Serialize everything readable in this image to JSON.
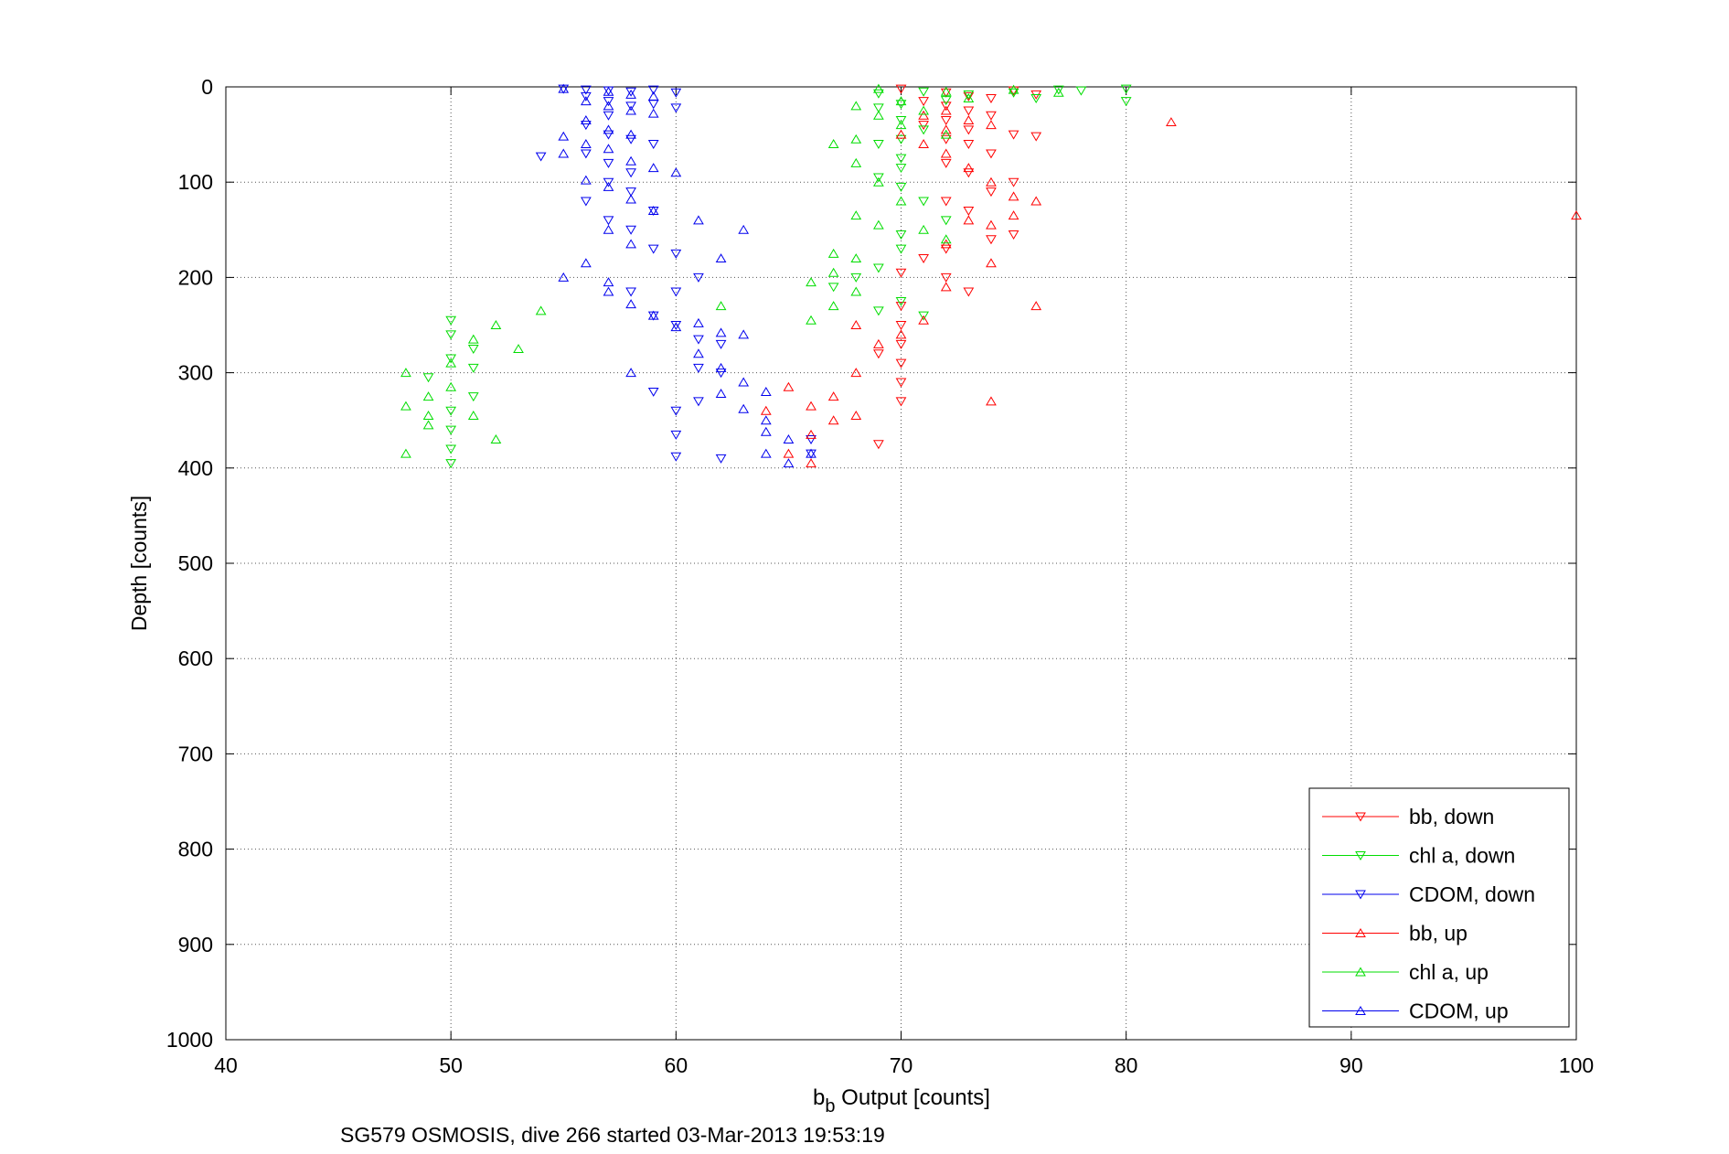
{
  "chart_data": {
    "type": "scatter",
    "xlabel_main": "b",
    "xlabel_sub": "b",
    "xlabel_rest": " Output [counts]",
    "ylabel": "Depth [counts]",
    "footer": "SG579 OSMOSIS, dive 266 started 03-Mar-2013 19:53:19",
    "xlim": [
      40,
      100
    ],
    "ylim": [
      0,
      1000
    ],
    "y_reversed": true,
    "grid": true,
    "legend_position": "bottom-right",
    "x_ticks": [
      "40",
      "50",
      "60",
      "70",
      "80",
      "90",
      "100"
    ],
    "y_ticks": [
      "0",
      "100",
      "200",
      "300",
      "400",
      "500",
      "600",
      "700",
      "800",
      "900",
      "1000"
    ],
    "series": [
      {
        "name": "bb, down",
        "color": "#ff0000",
        "marker": "triangle-down",
        "points": [
          [
            70,
            2
          ],
          [
            72,
            6
          ],
          [
            73,
            10
          ],
          [
            75,
            4
          ],
          [
            74,
            12
          ],
          [
            76,
            8
          ],
          [
            71,
            15
          ],
          [
            72,
            20
          ],
          [
            73,
            25
          ],
          [
            74,
            30
          ],
          [
            72,
            35
          ],
          [
            71,
            40
          ],
          [
            73,
            45
          ],
          [
            75,
            50
          ],
          [
            76,
            52
          ],
          [
            72,
            55
          ],
          [
            73,
            60
          ],
          [
            74,
            70
          ],
          [
            72,
            80
          ],
          [
            73,
            90
          ],
          [
            75,
            100
          ],
          [
            74,
            110
          ],
          [
            72,
            120
          ],
          [
            73,
            130
          ],
          [
            75,
            155
          ],
          [
            74,
            160
          ],
          [
            72,
            170
          ],
          [
            71,
            180
          ],
          [
            70,
            195
          ],
          [
            72,
            200
          ],
          [
            73,
            215
          ],
          [
            70,
            230
          ],
          [
            70,
            250
          ],
          [
            70,
            270
          ],
          [
            69,
            280
          ],
          [
            70,
            290
          ],
          [
            70,
            310
          ],
          [
            70,
            330
          ],
          [
            69,
            375
          ]
        ]
      },
      {
        "name": "chl a, down",
        "color": "#00dd00",
        "marker": "triangle-down",
        "points": [
          [
            80,
            2
          ],
          [
            78,
            4
          ],
          [
            77,
            3
          ],
          [
            75,
            6
          ],
          [
            73,
            8
          ],
          [
            71,
            5
          ],
          [
            69,
            7
          ],
          [
            80,
            15
          ],
          [
            76,
            12
          ],
          [
            72,
            14
          ],
          [
            70,
            18
          ],
          [
            69,
            22
          ],
          [
            70,
            35
          ],
          [
            71,
            45
          ],
          [
            70,
            55
          ],
          [
            69,
            60
          ],
          [
            70,
            75
          ],
          [
            70,
            85
          ],
          [
            69,
            95
          ],
          [
            70,
            105
          ],
          [
            71,
            120
          ],
          [
            72,
            140
          ],
          [
            70,
            155
          ],
          [
            70,
            170
          ],
          [
            69,
            190
          ],
          [
            68,
            200
          ],
          [
            67,
            210
          ],
          [
            70,
            225
          ],
          [
            69,
            235
          ],
          [
            71,
            240
          ],
          [
            50,
            245
          ],
          [
            51,
            275
          ],
          [
            49,
            305
          ],
          [
            50,
            260
          ],
          [
            50,
            285
          ],
          [
            51,
            295
          ],
          [
            51,
            325
          ],
          [
            50,
            340
          ],
          [
            50,
            360
          ],
          [
            50,
            380
          ],
          [
            50,
            395
          ]
        ]
      },
      {
        "name": "CDOM, down",
        "color": "#0000ee",
        "marker": "triangle-down",
        "points": [
          [
            55,
            2
          ],
          [
            56,
            3
          ],
          [
            57,
            4
          ],
          [
            58,
            5
          ],
          [
            59,
            3
          ],
          [
            60,
            6
          ],
          [
            56,
            10
          ],
          [
            57,
            15
          ],
          [
            58,
            20
          ],
          [
            59,
            18
          ],
          [
            60,
            22
          ],
          [
            57,
            30
          ],
          [
            56,
            40
          ],
          [
            57,
            50
          ],
          [
            58,
            55
          ],
          [
            59,
            60
          ],
          [
            56,
            70
          ],
          [
            54,
            73
          ],
          [
            57,
            80
          ],
          [
            58,
            90
          ],
          [
            57,
            100
          ],
          [
            58,
            110
          ],
          [
            56,
            120
          ],
          [
            59,
            130
          ],
          [
            57,
            140
          ],
          [
            58,
            150
          ],
          [
            59,
            170
          ],
          [
            60,
            175
          ],
          [
            61,
            200
          ],
          [
            58,
            215
          ],
          [
            60,
            215
          ],
          [
            59,
            240
          ],
          [
            60,
            250
          ],
          [
            61,
            265
          ],
          [
            62,
            270
          ],
          [
            61,
            295
          ],
          [
            59,
            320
          ],
          [
            60,
            340
          ],
          [
            60,
            365
          ],
          [
            60,
            388
          ],
          [
            61,
            330
          ],
          [
            62,
            390
          ],
          [
            62,
            300
          ],
          [
            66,
            370
          ],
          [
            66,
            385
          ]
        ]
      },
      {
        "name": "bb, up",
        "color": "#ff0000",
        "marker": "triangle-up",
        "points": [
          [
            82,
            37
          ],
          [
            72,
            25
          ],
          [
            71,
            30
          ],
          [
            73,
            35
          ],
          [
            74,
            40
          ],
          [
            72,
            45
          ],
          [
            70,
            50
          ],
          [
            71,
            60
          ],
          [
            72,
            70
          ],
          [
            73,
            85
          ],
          [
            74,
            100
          ],
          [
            75,
            115
          ],
          [
            73,
            140
          ],
          [
            74,
            145
          ],
          [
            76,
            120
          ],
          [
            75,
            135
          ],
          [
            72,
            165
          ],
          [
            74,
            185
          ],
          [
            72,
            210
          ],
          [
            76,
            230
          ],
          [
            71,
            245
          ],
          [
            70,
            260
          ],
          [
            68,
            250
          ],
          [
            69,
            270
          ],
          [
            68,
            300
          ],
          [
            67,
            325
          ],
          [
            65,
            315
          ],
          [
            66,
            335
          ],
          [
            68,
            345
          ],
          [
            67,
            350
          ],
          [
            66,
            365
          ],
          [
            65,
            385
          ],
          [
            66,
            395
          ],
          [
            74,
            330
          ],
          [
            64,
            340
          ],
          [
            100,
            135
          ]
        ]
      },
      {
        "name": "chl a, up",
        "color": "#00dd00",
        "marker": "triangle-up",
        "points": [
          [
            69,
            2
          ],
          [
            72,
            5
          ],
          [
            75,
            3
          ],
          [
            77,
            6
          ],
          [
            73,
            12
          ],
          [
            70,
            15
          ],
          [
            68,
            20
          ],
          [
            71,
            25
          ],
          [
            69,
            30
          ],
          [
            70,
            40
          ],
          [
            72,
            50
          ],
          [
            68,
            55
          ],
          [
            67,
            60
          ],
          [
            68,
            80
          ],
          [
            69,
            100
          ],
          [
            70,
            120
          ],
          [
            68,
            135
          ],
          [
            69,
            145
          ],
          [
            71,
            150
          ],
          [
            72,
            160
          ],
          [
            67,
            175
          ],
          [
            68,
            180
          ],
          [
            67,
            195
          ],
          [
            66,
            205
          ],
          [
            68,
            215
          ],
          [
            67,
            230
          ],
          [
            66,
            245
          ],
          [
            62,
            230
          ],
          [
            52,
            250
          ],
          [
            54,
            235
          ],
          [
            53,
            275
          ],
          [
            51,
            265
          ],
          [
            50,
            290
          ],
          [
            48,
            300
          ],
          [
            49,
            325
          ],
          [
            48,
            335
          ],
          [
            49,
            345
          ],
          [
            50,
            315
          ],
          [
            49,
            355
          ],
          [
            51,
            345
          ],
          [
            48,
            385
          ],
          [
            52,
            370
          ]
        ]
      },
      {
        "name": "CDOM, up",
        "color": "#0000ee",
        "marker": "triangle-up",
        "points": [
          [
            55,
            2
          ],
          [
            57,
            5
          ],
          [
            58,
            8
          ],
          [
            59,
            10
          ],
          [
            56,
            15
          ],
          [
            57,
            20
          ],
          [
            58,
            25
          ],
          [
            59,
            28
          ],
          [
            56,
            35
          ],
          [
            57,
            45
          ],
          [
            58,
            50
          ],
          [
            55,
            52
          ],
          [
            56,
            60
          ],
          [
            57,
            65
          ],
          [
            55,
            70
          ],
          [
            58,
            78
          ],
          [
            59,
            85
          ],
          [
            60,
            90
          ],
          [
            56,
            98
          ],
          [
            57,
            105
          ],
          [
            58,
            118
          ],
          [
            59,
            130
          ],
          [
            57,
            150
          ],
          [
            58,
            165
          ],
          [
            61,
            140
          ],
          [
            63,
            150
          ],
          [
            62,
            180
          ],
          [
            56,
            185
          ],
          [
            57,
            205
          ],
          [
            58,
            228
          ],
          [
            59,
            240
          ],
          [
            60,
            252
          ],
          [
            61,
            248
          ],
          [
            62,
            258
          ],
          [
            63,
            260
          ],
          [
            61,
            280
          ],
          [
            62,
            295
          ],
          [
            63,
            310
          ],
          [
            64,
            320
          ],
          [
            62,
            322
          ],
          [
            63,
            338
          ],
          [
            64,
            350
          ],
          [
            64,
            362
          ],
          [
            65,
            370
          ],
          [
            66,
            385
          ],
          [
            65,
            395
          ],
          [
            64,
            385
          ],
          [
            58,
            300
          ],
          [
            57,
            215
          ],
          [
            55,
            200
          ]
        ]
      }
    ]
  }
}
